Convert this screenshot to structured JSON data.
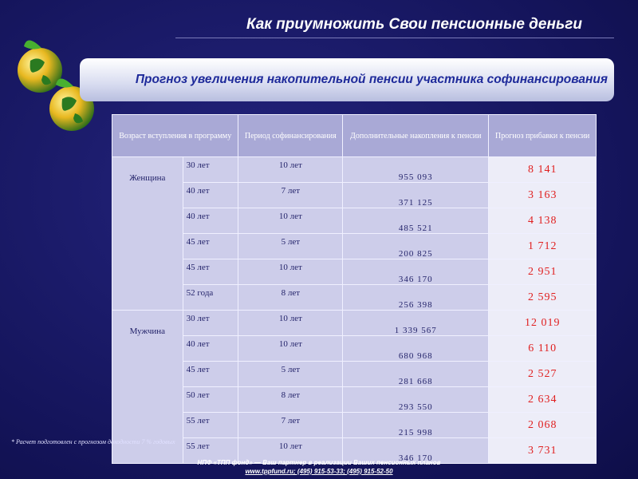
{
  "header": {
    "title": "Как  приумножить Свои пенсионные деньги",
    "banner": "Прогноз увеличения накопительной пенсии участника софинансирования"
  },
  "table": {
    "columns": [
      "Возраст вступления в программу",
      "Период софинансирования",
      "Дополнительные накопления к пенсии",
      "Прогноз прибавки к пенсии"
    ],
    "groups": [
      {
        "label": "Женщина",
        "rows": [
          [
            "30 лет",
            "10 лет",
            "955 093",
            "8 141"
          ],
          [
            "40 лет",
            "7 лет",
            "371 125",
            "3 163"
          ],
          [
            "40 лет",
            "10 лет",
            "485 521",
            "4 138"
          ],
          [
            "45 лет",
            "5 лет",
            "200 825",
            "1 712"
          ],
          [
            "45 лет",
            "10 лет",
            "346 170",
            "2 951"
          ],
          [
            "52 года",
            "8 лет",
            "256 398",
            "2 595"
          ]
        ]
      },
      {
        "label": "Мужчина",
        "rows": [
          [
            "30 лет",
            "10 лет",
            "1 339 567",
            "12 019"
          ],
          [
            "40 лет",
            "10 лет",
            "680 968",
            "6 110"
          ],
          [
            "45 лет",
            "5 лет",
            "281 668",
            "2 527"
          ],
          [
            "50 лет",
            "8 лет",
            "293 550",
            "2 634"
          ],
          [
            "55 лет",
            "7 лет",
            "215 998",
            "2 068"
          ],
          [
            "55 лет",
            "10 лет",
            "346 170",
            "3 731"
          ]
        ]
      }
    ]
  },
  "footnote": "*  Расчет подготовлен с прогнозом доходности 7 % годовых",
  "footer": {
    "line1": "НПФ «ТПП фонд» — Ваш партнер в реализации Ваших пенсионных планов",
    "line2": "www.tppfund.ru; (495) 915-53-33;  (495) 915-52-50"
  }
}
